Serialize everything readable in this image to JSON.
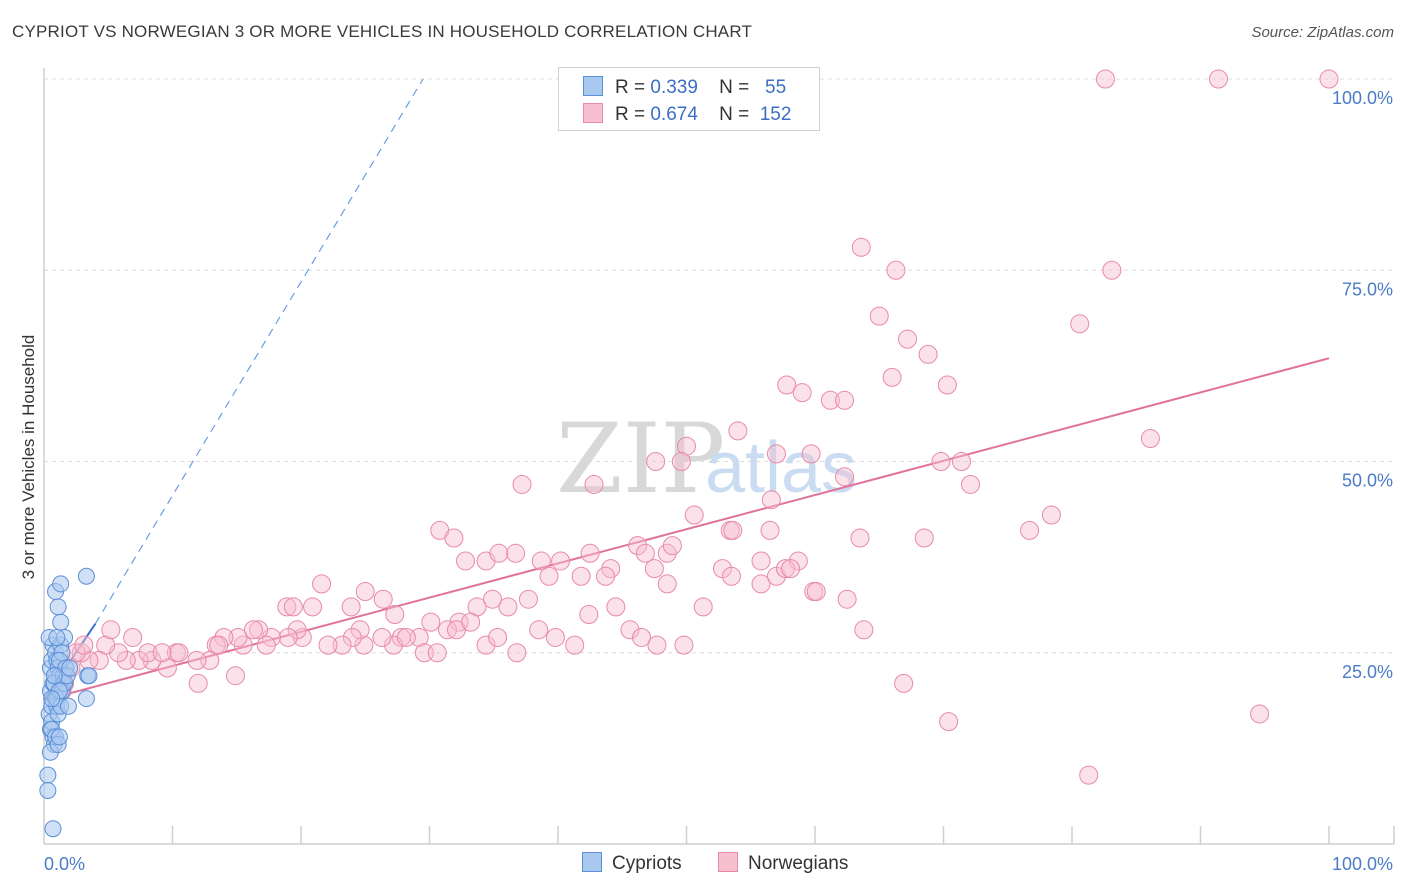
{
  "header": {
    "title": "CYPRIOT VS NORWEGIAN 3 OR MORE VEHICLES IN HOUSEHOLD CORRELATION CHART",
    "source": "Source: ZipAtlas.com"
  },
  "watermark": {
    "zip": "ZIP",
    "atlas": "atlas"
  },
  "legend": {
    "rows": [
      {
        "r_label": "R =",
        "r_value": "0.339",
        "n_label": "N =",
        "n_value": "55",
        "color": "#a9c8f0",
        "stroke": "#5b8fd6"
      },
      {
        "r_label": "R =",
        "r_value": "0.674",
        "n_label": "N =",
        "n_value": "152",
        "color": "#f7bfd0",
        "stroke": "#e88aa8"
      }
    ]
  },
  "bottom_legend": {
    "cypriots": "Cypriots",
    "norwegians": "Norwegians"
  },
  "chart_data": {
    "type": "scatter",
    "title": "CYPRIOT VS NORWEGIAN 3 OR MORE VEHICLES IN HOUSEHOLD CORRELATION CHART",
    "xlabel": "",
    "ylabel": "3 or more Vehicles in Household",
    "xlim": [
      0,
      100
    ],
    "ylim": [
      0,
      100
    ],
    "x_tick_labels": [
      "0.0%",
      "100.0%"
    ],
    "y_tick_labels": [
      "25.0%",
      "50.0%",
      "75.0%",
      "100.0%"
    ],
    "y_ticks": [
      25,
      50,
      75,
      100
    ],
    "grid": true,
    "series": [
      {
        "name": "Cypriots",
        "color": "#a9c8f0",
        "stroke": "#5b8fd6",
        "points": [
          [
            0.3,
            9
          ],
          [
            0.3,
            7
          ],
          [
            0.5,
            15
          ],
          [
            0.4,
            17
          ],
          [
            0.6,
            18
          ],
          [
            0.5,
            20
          ],
          [
            0.7,
            21
          ],
          [
            0.8,
            22
          ],
          [
            0.5,
            23
          ],
          [
            0.6,
            24
          ],
          [
            0.7,
            26
          ],
          [
            0.4,
            27
          ],
          [
            0.9,
            25
          ],
          [
            1.0,
            24
          ],
          [
            1.1,
            23
          ],
          [
            1.2,
            22
          ],
          [
            0.8,
            21
          ],
          [
            0.9,
            19
          ],
          [
            1.0,
            18
          ],
          [
            0.6,
            16
          ],
          [
            0.7,
            14
          ],
          [
            0.8,
            13
          ],
          [
            0.5,
            12
          ],
          [
            1.3,
            26
          ],
          [
            1.6,
            27
          ],
          [
            1.4,
            25
          ],
          [
            1.2,
            24
          ],
          [
            1.5,
            22
          ],
          [
            1.7,
            23
          ],
          [
            1.3,
            29
          ],
          [
            1.1,
            31
          ],
          [
            0.9,
            33
          ],
          [
            1.3,
            34
          ],
          [
            1.5,
            21
          ],
          [
            1.0,
            19
          ],
          [
            0.6,
            15
          ],
          [
            0.9,
            14
          ],
          [
            1.1,
            13
          ],
          [
            1.2,
            14
          ],
          [
            0.7,
            2
          ],
          [
            1.4,
            20
          ],
          [
            1.6,
            21
          ],
          [
            1.8,
            22
          ],
          [
            2.0,
            23
          ],
          [
            1.1,
            17
          ],
          [
            1.3,
            18
          ],
          [
            1.9,
            18
          ],
          [
            3.3,
            35
          ],
          [
            3.4,
            22
          ],
          [
            3.3,
            19
          ],
          [
            3.5,
            22
          ],
          [
            1.0,
            27
          ],
          [
            0.8,
            22
          ],
          [
            1.2,
            20
          ],
          [
            0.6,
            19
          ]
        ]
      },
      {
        "name": "Norwegians",
        "color": "#f7bfd0",
        "stroke": "#e88aa8",
        "points": [
          [
            82.6,
            100
          ],
          [
            91.4,
            100
          ],
          [
            100,
            100
          ],
          [
            63.6,
            78
          ],
          [
            66.3,
            75
          ],
          [
            83.1,
            75
          ],
          [
            65.0,
            69
          ],
          [
            67.2,
            66
          ],
          [
            80.6,
            68
          ],
          [
            68.8,
            64
          ],
          [
            57.8,
            60
          ],
          [
            59.0,
            59
          ],
          [
            61.2,
            58
          ],
          [
            62.3,
            58
          ],
          [
            66.0,
            61
          ],
          [
            70.3,
            60
          ],
          [
            54.0,
            54
          ],
          [
            50.0,
            52
          ],
          [
            57.0,
            51
          ],
          [
            59.7,
            51
          ],
          [
            62.3,
            48
          ],
          [
            69.8,
            50
          ],
          [
            71.4,
            50
          ],
          [
            72.1,
            47
          ],
          [
            86.1,
            53
          ],
          [
            56.6,
            45
          ],
          [
            49.6,
            50
          ],
          [
            47.6,
            50
          ],
          [
            42.8,
            47
          ],
          [
            37.2,
            47
          ],
          [
            50.6,
            43
          ],
          [
            53.4,
            41
          ],
          [
            53.6,
            41
          ],
          [
            56.5,
            41
          ],
          [
            46.2,
            39
          ],
          [
            48.5,
            38
          ],
          [
            48.9,
            39
          ],
          [
            55.8,
            37
          ],
          [
            58.7,
            37
          ],
          [
            63.5,
            40
          ],
          [
            68.5,
            40
          ],
          [
            76.7,
            41
          ],
          [
            78.4,
            43
          ],
          [
            30.8,
            41
          ],
          [
            31.9,
            40
          ],
          [
            32.8,
            37
          ],
          [
            34.4,
            37
          ],
          [
            35.4,
            38
          ],
          [
            36.7,
            38
          ],
          [
            38.7,
            37
          ],
          [
            40.2,
            37
          ],
          [
            42.5,
            38
          ],
          [
            44.1,
            36
          ],
          [
            46.8,
            38
          ],
          [
            47.5,
            36
          ],
          [
            48.5,
            34
          ],
          [
            43.7,
            35
          ],
          [
            41.8,
            35
          ],
          [
            39.3,
            35
          ],
          [
            37.7,
            32
          ],
          [
            36.1,
            31
          ],
          [
            34.9,
            32
          ],
          [
            33.7,
            31
          ],
          [
            32.3,
            29
          ],
          [
            31.4,
            28
          ],
          [
            30.1,
            29
          ],
          [
            29.2,
            27
          ],
          [
            27.8,
            27
          ],
          [
            27.2,
            26
          ],
          [
            26.3,
            27
          ],
          [
            24.9,
            26
          ],
          [
            24.6,
            28
          ],
          [
            24.0,
            27
          ],
          [
            23.2,
            26
          ],
          [
            22.1,
            26
          ],
          [
            20.1,
            27
          ],
          [
            19.7,
            28
          ],
          [
            19.0,
            27
          ],
          [
            17.7,
            27
          ],
          [
            16.7,
            28
          ],
          [
            15.5,
            26
          ],
          [
            15.1,
            27
          ],
          [
            14.0,
            27
          ],
          [
            13.4,
            26
          ],
          [
            12.9,
            24
          ],
          [
            11.9,
            24
          ],
          [
            10.3,
            25
          ],
          [
            9.6,
            23
          ],
          [
            8.4,
            24
          ],
          [
            7.4,
            24
          ],
          [
            6.4,
            24
          ],
          [
            5.8,
            25
          ],
          [
            4.8,
            26
          ],
          [
            4.3,
            24
          ],
          [
            3.5,
            24
          ],
          [
            2.9,
            25
          ],
          [
            2.1,
            23
          ],
          [
            1.6,
            21
          ],
          [
            1.4,
            20
          ],
          [
            1.0,
            22
          ],
          [
            2.5,
            25
          ],
          [
            3.1,
            26
          ],
          [
            5.2,
            28
          ],
          [
            6.9,
            27
          ],
          [
            8.1,
            25
          ],
          [
            9.2,
            25
          ],
          [
            10.5,
            25
          ],
          [
            12.0,
            21
          ],
          [
            13.6,
            26
          ],
          [
            14.9,
            22
          ],
          [
            16.3,
            28
          ],
          [
            17.3,
            26
          ],
          [
            18.9,
            31
          ],
          [
            19.4,
            31
          ],
          [
            20.9,
            31
          ],
          [
            21.6,
            34
          ],
          [
            23.9,
            31
          ],
          [
            25.0,
            33
          ],
          [
            26.4,
            32
          ],
          [
            27.3,
            30
          ],
          [
            28.2,
            27
          ],
          [
            29.6,
            25
          ],
          [
            30.6,
            25
          ],
          [
            32.1,
            28
          ],
          [
            33.2,
            29
          ],
          [
            34.4,
            26
          ],
          [
            35.3,
            27
          ],
          [
            36.8,
            25
          ],
          [
            38.5,
            28
          ],
          [
            39.8,
            27
          ],
          [
            41.3,
            26
          ],
          [
            42.4,
            30
          ],
          [
            44.5,
            31
          ],
          [
            45.6,
            28
          ],
          [
            46.5,
            27
          ],
          [
            47.7,
            26
          ],
          [
            49.8,
            26
          ],
          [
            51.3,
            31
          ],
          [
            52.8,
            36
          ],
          [
            53.5,
            35
          ],
          [
            55.8,
            34
          ],
          [
            57.0,
            35
          ],
          [
            57.7,
            36
          ],
          [
            58.1,
            36
          ],
          [
            59.9,
            33
          ],
          [
            60.1,
            33
          ],
          [
            62.5,
            32
          ],
          [
            63.8,
            28
          ],
          [
            66.9,
            21
          ],
          [
            70.4,
            16
          ],
          [
            81.3,
            9
          ],
          [
            94.6,
            17
          ]
        ]
      }
    ],
    "trend_lines": [
      {
        "series": "Cypriots",
        "from": [
          0,
          18.8
        ],
        "to": [
          4.0,
          28.8
        ],
        "extended_to": [
          29.5,
          100
        ]
      },
      {
        "series": "Norwegians",
        "from": [
          0,
          18.8
        ],
        "to": [
          100,
          63.5
        ]
      }
    ]
  }
}
